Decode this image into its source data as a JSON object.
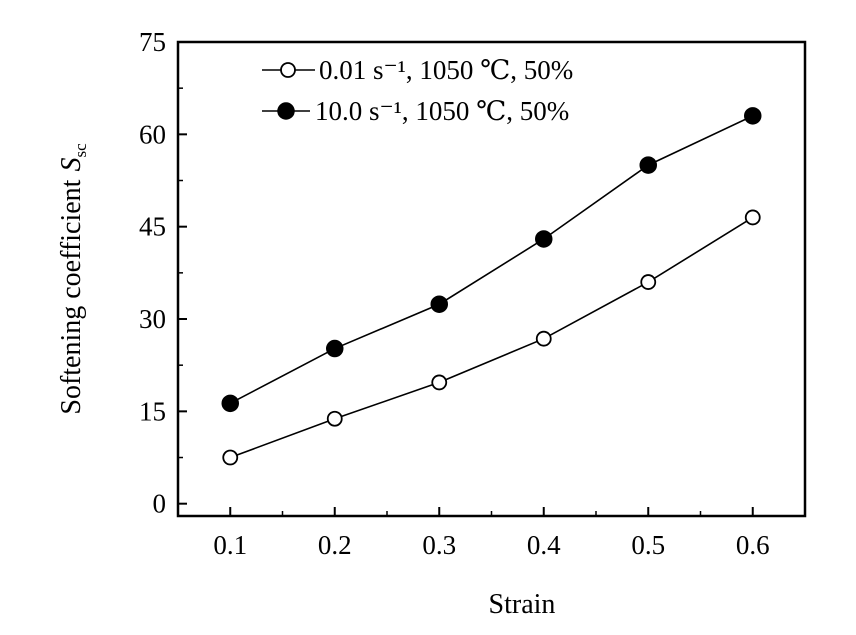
{
  "chart_data": {
    "type": "line",
    "title": "",
    "xlabel": "Strain",
    "ylabel": "Softening coefficient",
    "ylabel_symbol": "S",
    "ylabel_subscript": "sc",
    "x": [
      0.1,
      0.2,
      0.3,
      0.4,
      0.5,
      0.6
    ],
    "x_tick_labels": [
      "0.1",
      "0.2",
      "0.3",
      "0.4",
      "0.5",
      "0.6"
    ],
    "y_tick_labels": [
      "0",
      "15",
      "30",
      "45",
      "60",
      "75"
    ],
    "y_ticks": [
      0,
      15,
      30,
      45,
      60,
      75
    ],
    "xlim": [
      0.05,
      0.65
    ],
    "ylim": [
      -2,
      75
    ],
    "grid": false,
    "legend_position": "top-left",
    "series": [
      {
        "name": "0.01 s⁻¹, 1050 ℃, 50%",
        "marker": "open-circle",
        "values": [
          7.5,
          13.8,
          19.7,
          26.8,
          36.0,
          46.5
        ]
      },
      {
        "name": "10.0 s⁻¹, 1050 ℃, 50%",
        "marker": "filled-circle",
        "values": [
          16.3,
          25.2,
          32.4,
          43.0,
          55.0,
          63.0
        ]
      }
    ]
  }
}
